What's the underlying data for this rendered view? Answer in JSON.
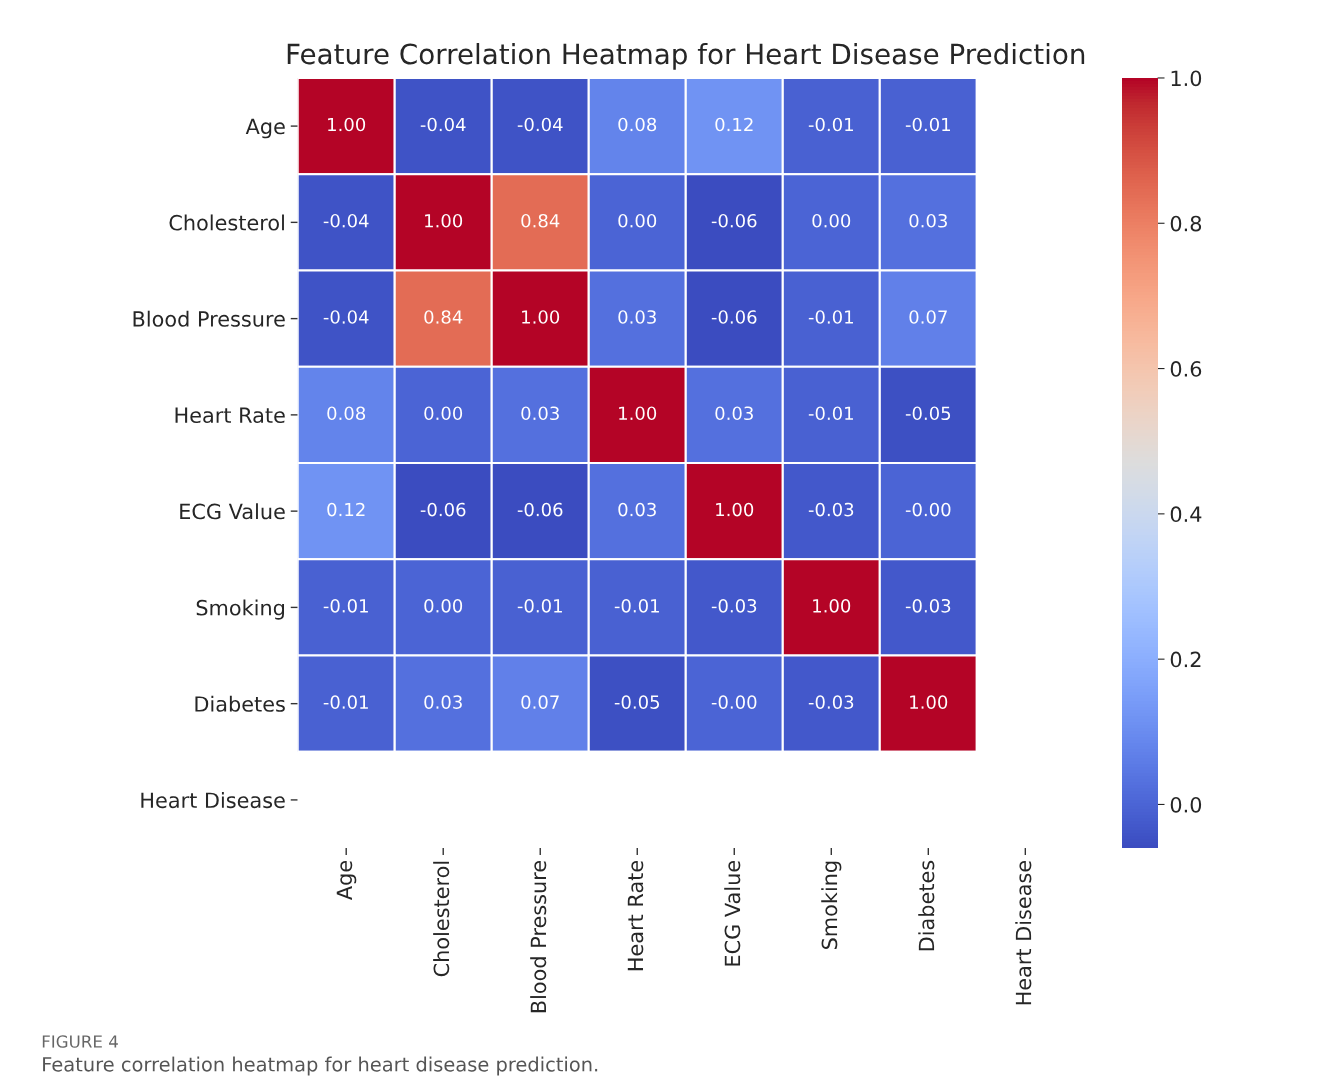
{
  "chart_data": {
    "type": "heatmap",
    "title": "Feature Correlation Heatmap for Heart Disease Prediction",
    "categories": [
      "Age",
      "Cholesterol",
      "Blood Pressure",
      "Heart Rate",
      "ECG Value",
      "Smoking",
      "Diabetes",
      "Heart Disease"
    ],
    "y_categories": [
      "Age",
      "Cholesterol",
      "Blood Pressure",
      "Heart Rate",
      "ECG Value",
      "Smoking",
      "Diabetes",
      "Heart Disease"
    ],
    "cells": [
      [
        1.0,
        -0.04,
        -0.04,
        0.08,
        0.12,
        -0.01,
        -0.01,
        null
      ],
      [
        -0.04,
        1.0,
        0.84,
        0.0,
        -0.06,
        0.0,
        0.03,
        null
      ],
      [
        -0.04,
        0.84,
        1.0,
        0.03,
        -0.06,
        -0.01,
        0.07,
        null
      ],
      [
        0.08,
        0.0,
        0.03,
        1.0,
        0.03,
        -0.01,
        -0.05,
        null
      ],
      [
        0.12,
        -0.06,
        -0.06,
        0.03,
        1.0,
        -0.03,
        0.0,
        null
      ],
      [
        -0.01,
        0.0,
        -0.01,
        -0.01,
        -0.03,
        1.0,
        -0.03,
        null
      ],
      [
        -0.01,
        0.03,
        0.07,
        -0.05,
        0.0,
        -0.03,
        1.0,
        null
      ],
      [
        null,
        null,
        null,
        null,
        null,
        null,
        null,
        null
      ]
    ],
    "cell_labels": [
      [
        "1.00",
        "-0.04",
        "-0.04",
        "0.08",
        "0.12",
        "-0.01",
        "-0.01",
        null
      ],
      [
        "-0.04",
        "1.00",
        "0.84",
        "0.00",
        "-0.06",
        "0.00",
        "0.03",
        null
      ],
      [
        "-0.04",
        "0.84",
        "1.00",
        "0.03",
        "-0.06",
        "-0.01",
        "0.07",
        null
      ],
      [
        "0.08",
        "0.00",
        "0.03",
        "1.00",
        "0.03",
        "-0.01",
        "-0.05",
        null
      ],
      [
        "0.12",
        "-0.06",
        "-0.06",
        "0.03",
        "1.00",
        "-0.03",
        "-0.00",
        null
      ],
      [
        "-0.01",
        "0.00",
        "-0.01",
        "-0.01",
        "-0.03",
        "1.00",
        "-0.03",
        null
      ],
      [
        "-0.01",
        "0.03",
        "0.07",
        "-0.05",
        "-0.00",
        "-0.03",
        "1.00",
        null
      ],
      [
        null,
        null,
        null,
        null,
        null,
        null,
        null,
        null
      ]
    ],
    "clim": [
      -0.06,
      1.0
    ],
    "cticks": [
      {
        "value": 0,
        "label": "0.0"
      },
      0.2,
      0.4,
      0.6,
      0.8,
      {
        "value": 1,
        "label": "1.0"
      }
    ],
    "annotations": [
      "FIGURE 4",
      "Feature correlation heatmap for heart disease prediction."
    ]
  }
}
